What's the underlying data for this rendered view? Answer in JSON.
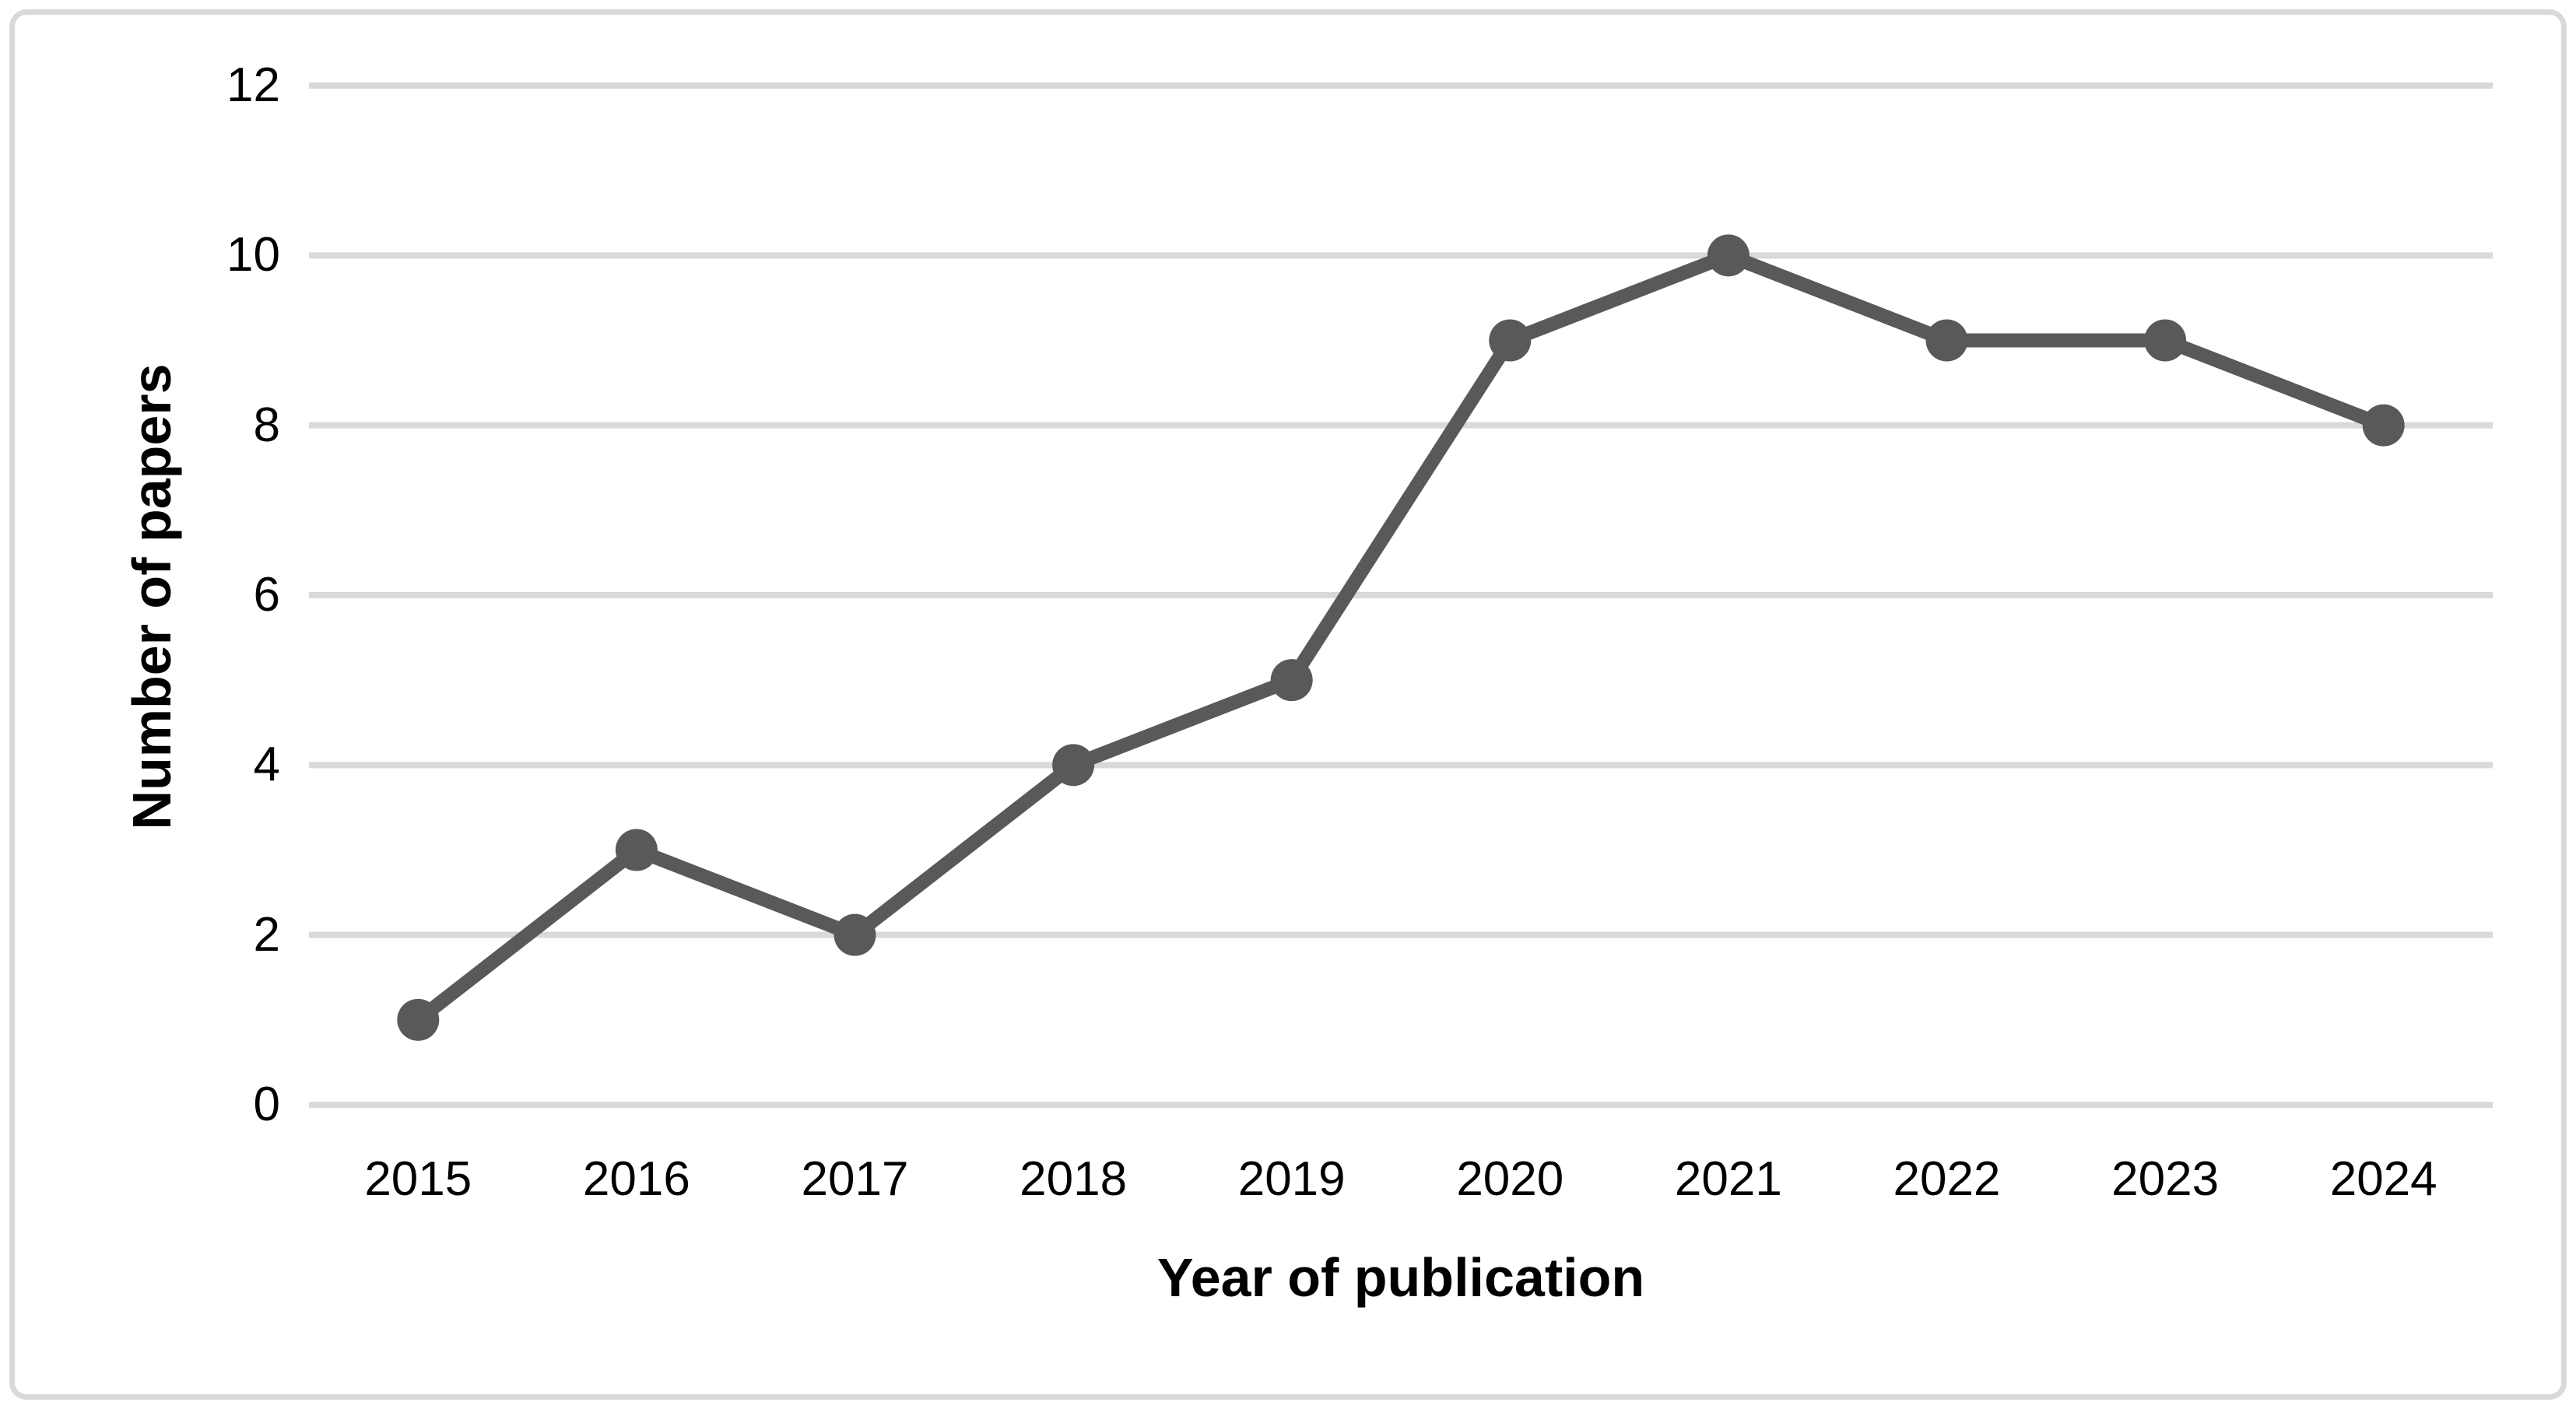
{
  "chart_data": {
    "type": "line",
    "categories": [
      "2015",
      "2016",
      "2017",
      "2018",
      "2019",
      "2020",
      "2021",
      "2022",
      "2023",
      "2024"
    ],
    "values": [
      1,
      3,
      2,
      4,
      5,
      9,
      10,
      9,
      9,
      8
    ],
    "title": "",
    "xlabel": "Year of publication",
    "ylabel": "Number of papers",
    "ylim": [
      0,
      12
    ],
    "yticks": [
      0,
      2,
      4,
      6,
      8,
      10,
      12
    ],
    "grid": true,
    "legend": false,
    "line_color": "#595959",
    "marker_color": "#595959",
    "gridline_color": "#d9d9d9",
    "frame_color": "#d9d9d9",
    "marker": "circle"
  }
}
